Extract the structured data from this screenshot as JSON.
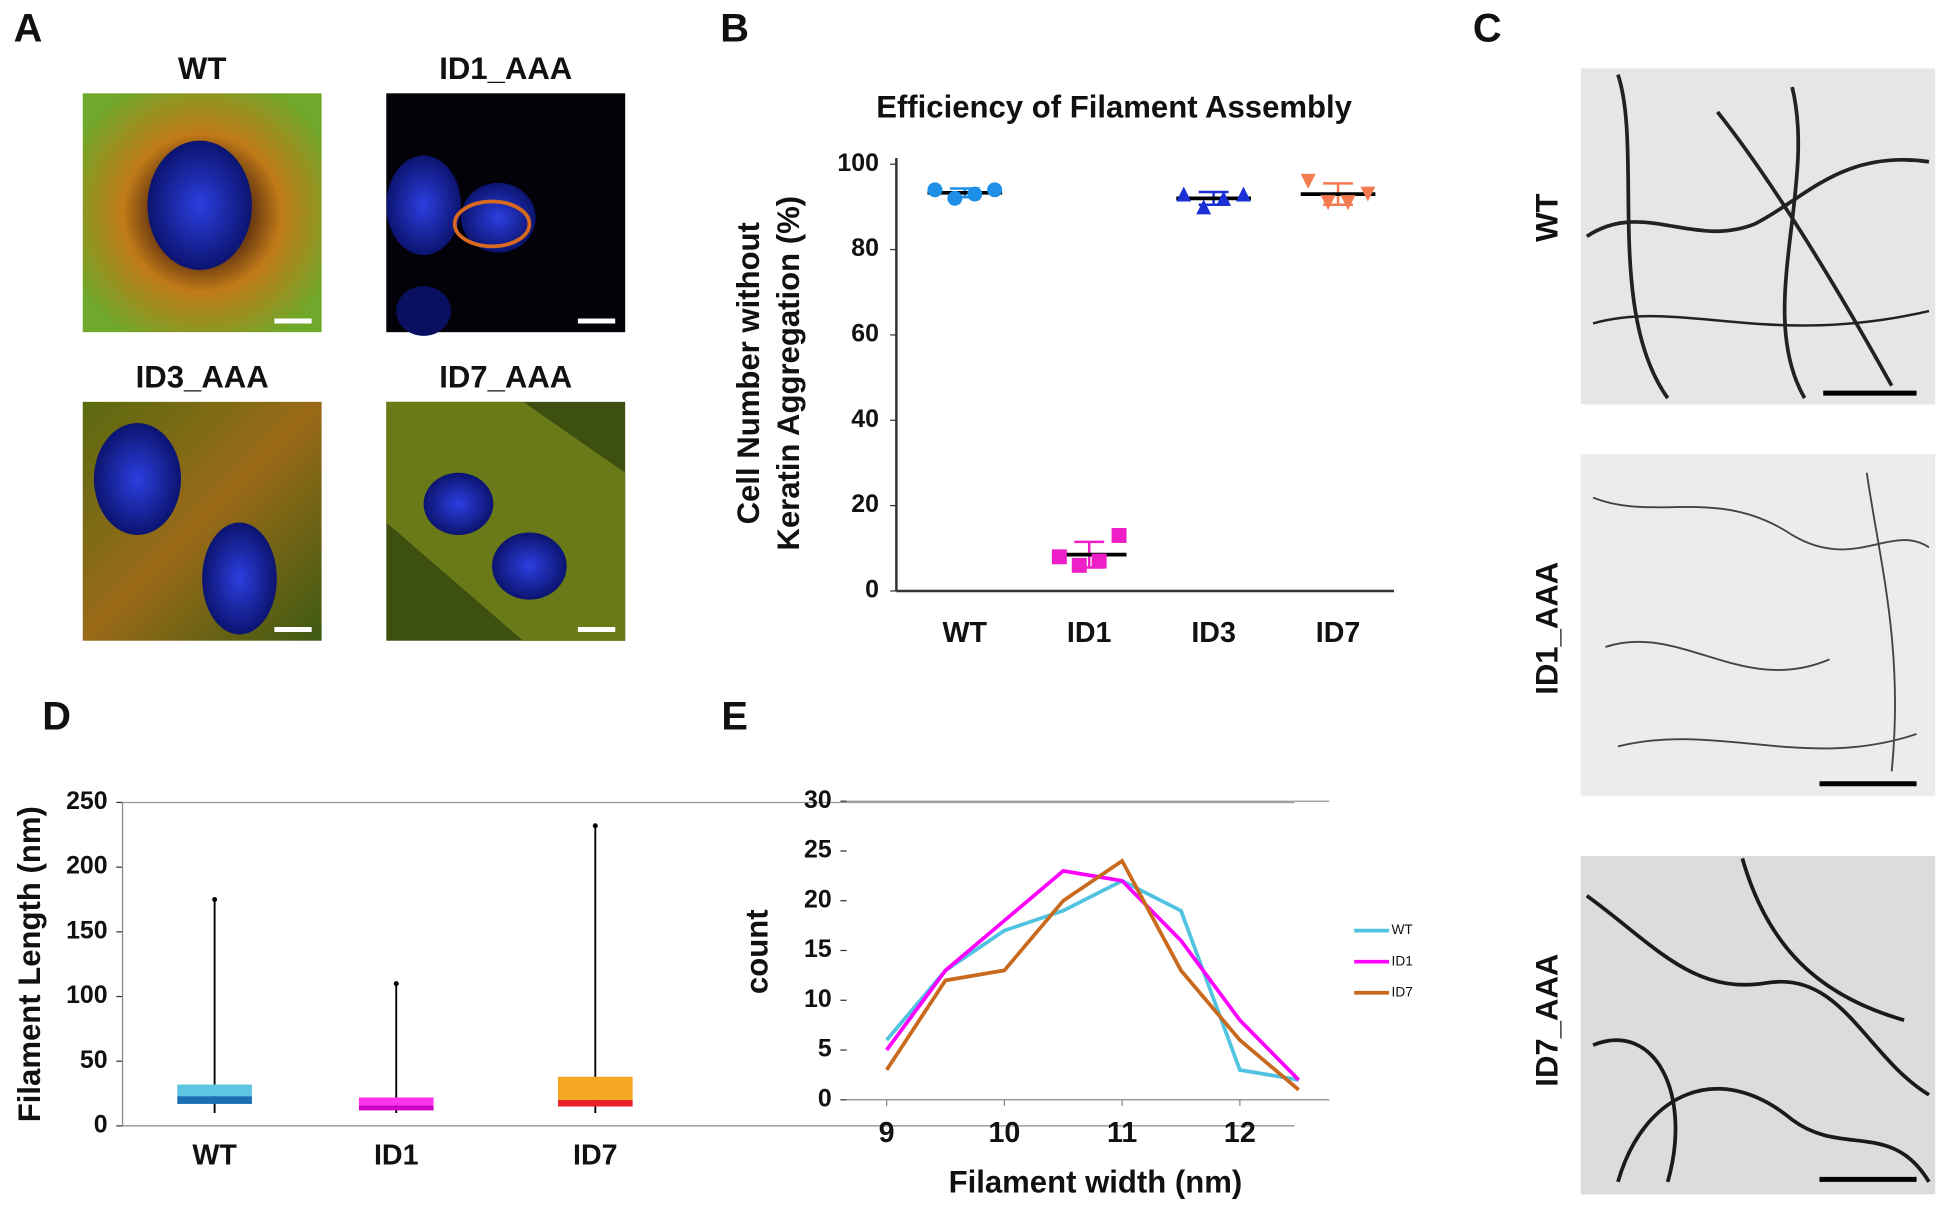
{
  "figure": {
    "panel_labels": [
      "A",
      "B",
      "C",
      "D",
      "E"
    ],
    "panel_a_titles": [
      "WT",
      "ID1_AAA",
      "ID3_AAA",
      "ID7_AAA"
    ],
    "panel_c_labels": [
      "WT",
      "ID1_AAA",
      "ID7_AAA"
    ]
  },
  "chart_data": [
    {
      "type": "dotplot",
      "title": "Efficiency of Filament Assembly",
      "ylabel": [
        "Cell Number without",
        "Keratin Aggregation (%)"
      ],
      "categories": [
        "WT",
        "ID1",
        "ID3",
        "ID7"
      ],
      "groups": [
        {
          "color": "#1e8fe6",
          "marker": "circle",
          "values": [
            94,
            92,
            93,
            94
          ],
          "mean": 93.3,
          "sd": 1
        },
        {
          "color": "#ee1fc6",
          "marker": "square",
          "values": [
            8,
            6,
            7,
            13
          ],
          "mean": 8.5,
          "sd": 3
        },
        {
          "color": "#1a2fd6",
          "marker": "triangle",
          "values": [
            93,
            90,
            92,
            93
          ],
          "mean": 92,
          "sd": 1.5
        },
        {
          "color": "#f47a50",
          "marker": "triangle-down",
          "values": [
            96,
            91,
            91,
            93
          ],
          "mean": 93,
          "sd": 2.5
        }
      ],
      "ylim": [
        0,
        100
      ],
      "yticks": [
        0,
        20,
        40,
        60,
        80,
        100
      ]
    },
    {
      "type": "box",
      "ylabel": "Filament Length (nm)",
      "categories": [
        "WT",
        "ID1",
        "ID7"
      ],
      "boxes": [
        {
          "min": 10,
          "q1": 17,
          "median": 23,
          "q3": 32,
          "max": 175,
          "colors": [
            "#1a6fb5",
            "#5ec6e0"
          ]
        },
        {
          "min": 10,
          "q1": 12,
          "median": 16,
          "q3": 22,
          "max": 110,
          "colors": [
            "#d100c8",
            "#ff33ee"
          ]
        },
        {
          "min": 10,
          "q1": 15,
          "median": 20,
          "q3": 38,
          "max": 232,
          "colors": [
            "#e8202a",
            "#f5a623"
          ]
        }
      ],
      "ylim": [
        0,
        250
      ],
      "yticks": [
        0,
        50,
        100,
        150,
        200,
        250
      ]
    },
    {
      "type": "line",
      "xlabel": "Filament width (nm)",
      "ylabel": "count",
      "x": [
        9,
        9.5,
        10,
        10.5,
        11,
        11.5,
        12,
        12.5
      ],
      "series": [
        {
          "name": "WT",
          "color": "#4fc3e0",
          "values": [
            6,
            13,
            17,
            19,
            22,
            19,
            3,
            2
          ]
        },
        {
          "name": "ID1",
          "color": "#ff00ff",
          "values": [
            5,
            13,
            18,
            23,
            22,
            16,
            8,
            2
          ]
        },
        {
          "name": "ID7",
          "color": "#c8691e",
          "values": [
            3,
            12,
            13,
            20,
            24,
            13,
            6,
            1
          ]
        }
      ],
      "xlim": [
        8.66,
        12.76
      ],
      "xticks": [
        9,
        10,
        11,
        12
      ],
      "ylim": [
        0,
        30
      ],
      "yticks": [
        0,
        5,
        10,
        15,
        20,
        25,
        30
      ]
    }
  ]
}
